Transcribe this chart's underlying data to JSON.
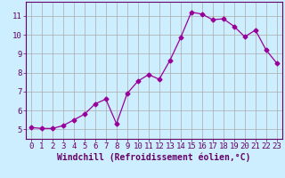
{
  "x": [
    0,
    1,
    2,
    3,
    4,
    5,
    6,
    7,
    8,
    9,
    10,
    11,
    12,
    13,
    14,
    15,
    16,
    17,
    18,
    19,
    20,
    21,
    22,
    23
  ],
  "y": [
    5.1,
    5.05,
    5.05,
    5.2,
    5.5,
    5.8,
    6.35,
    6.6,
    5.3,
    6.9,
    7.55,
    7.9,
    7.65,
    8.65,
    9.85,
    11.2,
    11.1,
    10.8,
    10.85,
    10.45,
    9.9,
    10.25,
    9.2,
    8.5
  ],
  "line_color": "#990099",
  "marker": "D",
  "marker_size": 2.5,
  "bg_color": "#cceeff",
  "grid_color": "#aaaaaa",
  "xlabel": "Windchill (Refroidissement éolien,°C)",
  "xlim": [
    -0.5,
    23.5
  ],
  "ylim": [
    4.5,
    11.75
  ],
  "yticks": [
    5,
    6,
    7,
    8,
    9,
    10,
    11
  ],
  "xticks": [
    0,
    1,
    2,
    3,
    4,
    5,
    6,
    7,
    8,
    9,
    10,
    11,
    12,
    13,
    14,
    15,
    16,
    17,
    18,
    19,
    20,
    21,
    22,
    23
  ],
  "xlabel_fontsize": 7,
  "tick_fontsize": 6.5,
  "axis_color": "#660066",
  "spine_color": "#660066"
}
